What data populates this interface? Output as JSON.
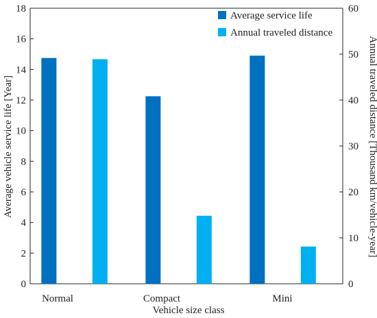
{
  "chart_data": {
    "type": "bar",
    "title": "",
    "xlabel": "Vehicle size class",
    "ylabel": "Average vehicle service life [Year]",
    "y2label": "Annual traveled distance [Thousand km/vehicle-year]",
    "categories": [
      "Normal",
      "Compact",
      "Mini"
    ],
    "ylim": [
      0,
      18
    ],
    "y2lim": [
      0,
      60
    ],
    "yticks": [
      "0",
      "2",
      "4",
      "6",
      "8",
      "10",
      "12",
      "14",
      "16",
      "18"
    ],
    "y2ticks": [
      "0",
      "10",
      "20",
      "30",
      "40",
      "50",
      "60"
    ],
    "grid": false,
    "legend_position": "top-right",
    "series": [
      {
        "name": "Average service life",
        "axis": "left",
        "color": "#0070C0",
        "values": [
          14.75,
          12.25,
          14.9
        ]
      },
      {
        "name": "Annual traveled distance",
        "axis": "right",
        "color": "#00B0F0",
        "values": [
          48.9,
          14.8,
          8.1
        ]
      }
    ]
  }
}
